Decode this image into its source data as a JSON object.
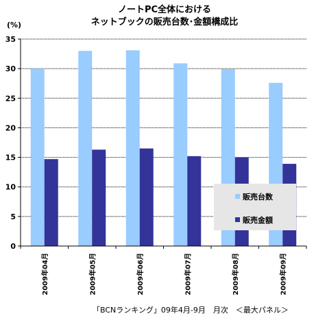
{
  "chart_data": {
    "type": "bar",
    "title_lines": [
      "ノートPC全体における",
      "ネットブックの販売台数･金額構成比"
    ],
    "y_unit": "(%)",
    "categories": [
      "2009年04月",
      "2009年05月",
      "2009年06月",
      "2009年07月",
      "2009年08月",
      "2009年09月"
    ],
    "series": [
      {
        "name": "販売台数",
        "values": [
          30.0,
          33.0,
          33.1,
          30.9,
          29.9,
          27.6
        ],
        "color": "#99ccff"
      },
      {
        "name": "販売金額",
        "values": [
          14.7,
          16.3,
          16.5,
          15.2,
          15.0,
          13.9
        ],
        "color": "#333399"
      }
    ],
    "ylim": [
      0,
      35
    ],
    "yticks": [
      0,
      5,
      10,
      15,
      20,
      25,
      30,
      35
    ],
    "grid": true,
    "legend_position": "bottom-right inside plot",
    "plot_background": "#ffffff",
    "legend_background": "#e6e6e6"
  },
  "source": "「BCNランキング」09年4月-9月　月次　＜最大パネル＞"
}
